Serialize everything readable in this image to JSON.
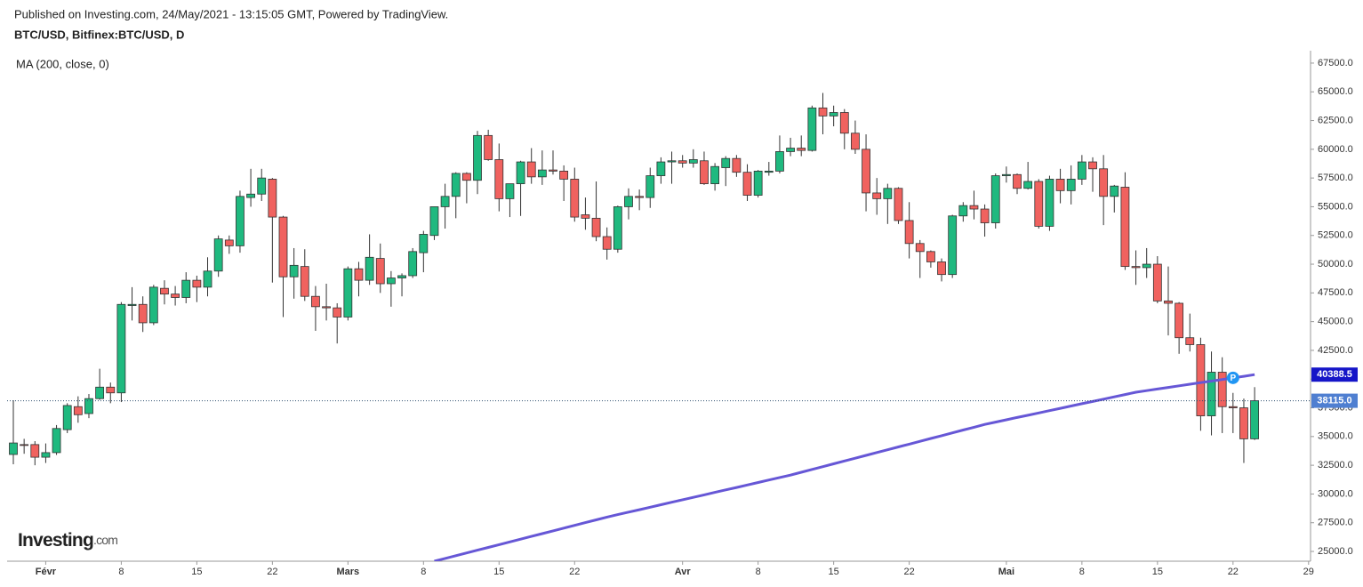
{
  "chart_data": {
    "type": "candlestick",
    "published": "Published on Investing.com, 24/May/2021 - 13:15:05 GMT, Powered by TradingView.",
    "title": "BTC/USD, Bitfinex:BTC/USD, D",
    "indicator_label": "MA (200, close, 0)",
    "logo": {
      "main": "Investing",
      "suffix": ".com"
    },
    "categories": [
      "2021-01-29",
      "2021-01-30",
      "2021-01-31",
      "2021-02-01",
      "2021-02-02",
      "2021-02-03",
      "2021-02-04",
      "2021-02-05",
      "2021-02-06",
      "2021-02-07",
      "2021-02-08",
      "2021-02-09",
      "2021-02-10",
      "2021-02-11",
      "2021-02-12",
      "2021-02-13",
      "2021-02-14",
      "2021-02-15",
      "2021-02-16",
      "2021-02-17",
      "2021-02-18",
      "2021-02-19",
      "2021-02-20",
      "2021-02-21",
      "2021-02-22",
      "2021-02-23",
      "2021-02-24",
      "2021-02-25",
      "2021-02-26",
      "2021-02-27",
      "2021-02-28",
      "2021-03-01",
      "2021-03-02",
      "2021-03-03",
      "2021-03-04",
      "2021-03-05",
      "2021-03-06",
      "2021-03-07",
      "2021-03-08",
      "2021-03-09",
      "2021-03-10",
      "2021-03-11",
      "2021-03-12",
      "2021-03-13",
      "2021-03-14",
      "2021-03-15",
      "2021-03-16",
      "2021-03-17",
      "2021-03-18",
      "2021-03-19",
      "2021-03-20",
      "2021-03-21",
      "2021-03-22",
      "2021-03-23",
      "2021-03-24",
      "2021-03-25",
      "2021-03-26",
      "2021-03-27",
      "2021-03-28",
      "2021-03-29",
      "2021-03-30",
      "2021-03-31",
      "2021-04-01",
      "2021-04-02",
      "2021-04-03",
      "2021-04-04",
      "2021-04-05",
      "2021-04-06",
      "2021-04-07",
      "2021-04-08",
      "2021-04-09",
      "2021-04-10",
      "2021-04-11",
      "2021-04-12",
      "2021-04-13",
      "2021-04-14",
      "2021-04-15",
      "2021-04-16",
      "2021-04-17",
      "2021-04-18",
      "2021-04-19",
      "2021-04-20",
      "2021-04-21",
      "2021-04-22",
      "2021-04-23",
      "2021-04-24",
      "2021-04-25",
      "2021-04-26",
      "2021-04-27",
      "2021-04-28",
      "2021-04-29",
      "2021-04-30",
      "2021-05-01",
      "2021-05-02",
      "2021-05-03",
      "2021-05-04",
      "2021-05-05",
      "2021-05-06",
      "2021-05-07",
      "2021-05-08",
      "2021-05-09",
      "2021-05-10",
      "2021-05-11",
      "2021-05-12",
      "2021-05-13",
      "2021-05-14",
      "2021-05-15",
      "2021-05-16",
      "2021-05-17",
      "2021-05-18",
      "2021-05-19",
      "2021-05-20",
      "2021-05-21",
      "2021-05-22",
      "2021-05-23",
      "2021-05-24"
    ],
    "open": [
      33440,
      34300,
      34300,
      33200,
      33600,
      35600,
      37600,
      37000,
      38300,
      39300,
      38800,
      46400,
      46500,
      44900,
      47900,
      47400,
      47100,
      48600,
      48000,
      49400,
      52100,
      51600,
      55800,
      56100,
      57400,
      54100,
      48900,
      49800,
      47200,
      46300,
      46200,
      45400,
      49600,
      48600,
      50500,
      48300,
      48800,
      49000,
      51000,
      52500,
      55000,
      55900,
      57900,
      57300,
      61200,
      59100,
      55700,
      57000,
      58900,
      57600,
      58200,
      58100,
      57400,
      54300,
      54000,
      52400,
      51300,
      55000,
      55900,
      55800,
      57700,
      58900,
      59000,
      58800,
      59000,
      57000,
      58400,
      59200,
      58000,
      56000,
      58000,
      58100,
      59800,
      60100,
      59900,
      63600,
      62900,
      63200,
      61400,
      60000,
      56200,
      55700,
      56600,
      53800,
      51800,
      51100,
      50200,
      49100,
      54200,
      55100,
      54800,
      53600,
      57700,
      57800,
      56600,
      57200,
      53300,
      57400,
      56400,
      57400,
      58900,
      58300,
      55900,
      56700,
      49800,
      49700,
      50000,
      46800,
      46600,
      43600,
      43000,
      36800,
      40600,
      37600,
      37500,
      34800
    ],
    "high": [
      38160,
      34800,
      34600,
      34400,
      36000,
      37900,
      38500,
      38700,
      40900,
      39700,
      46700,
      48000,
      47200,
      48200,
      48600,
      48100,
      49300,
      49000,
      50600,
      52500,
      52500,
      56400,
      58300,
      58300,
      57500,
      54200,
      51400,
      51300,
      48100,
      48300,
      46600,
      49800,
      50200,
      52600,
      51800,
      49400,
      49200,
      51400,
      52900,
      55000,
      57000,
      58000,
      58000,
      61600,
      61700,
      60500,
      57000,
      59000,
      60100,
      59900,
      59900,
      58600,
      58400,
      55800,
      57200,
      53200,
      55100,
      56600,
      56500,
      58400,
      59300,
      59800,
      59500,
      60000,
      59800,
      58800,
      59400,
      59500,
      58700,
      58200,
      58900,
      61200,
      61000,
      61200,
      63800,
      64900,
      63800,
      63500,
      62500,
      61300,
      57500,
      57000,
      56700,
      55400,
      52100,
      51200,
      50500,
      54300,
      55400,
      56400,
      55200,
      57900,
      58500,
      57900,
      58900,
      57400,
      57700,
      58300,
      58600,
      59500,
      59300,
      59500,
      56900,
      58000,
      51200,
      51400,
      50700,
      49800,
      46700,
      45700,
      43600,
      42400,
      41900,
      38800,
      38300,
      39300
    ],
    "low": [
      32590,
      33500,
      32500,
      32700,
      33400,
      35300,
      36200,
      36600,
      38200,
      37900,
      38000,
      45100,
      44100,
      44700,
      46500,
      46400,
      46600,
      46700,
      47200,
      48900,
      50900,
      51000,
      55000,
      55500,
      48400,
      45400,
      47000,
      46800,
      44200,
      45100,
      43100,
      45100,
      47200,
      48200,
      47500,
      46300,
      47200,
      48800,
      49300,
      52100,
      53100,
      54000,
      55300,
      56100,
      59000,
      54600,
      54100,
      54200,
      57000,
      56900,
      57800,
      55500,
      53700,
      53000,
      52000,
      50400,
      51000,
      53900,
      54700,
      54900,
      57000,
      57000,
      58400,
      58400,
      56900,
      56400,
      56800,
      57600,
      55500,
      55800,
      57700,
      57900,
      59400,
      59400,
      59800,
      61300,
      62000,
      60000,
      59600,
      54600,
      54300,
      53500,
      53500,
      50500,
      48800,
      49700,
      48500,
      48800,
      53700,
      53900,
      52400,
      53100,
      57100,
      56100,
      56500,
      53100,
      52900,
      55300,
      55200,
      56900,
      56300,
      53400,
      54500,
      49500,
      48200,
      48800,
      46600,
      43800,
      42200,
      42400,
      35500,
      35100,
      35300,
      35300,
      32700,
      34700
    ],
    "close": [
      34440,
      34250,
      33200,
      33600,
      35700,
      37700,
      36900,
      38300,
      39300,
      38800,
      46500,
      46500,
      44900,
      48000,
      47400,
      47100,
      48600,
      48000,
      49400,
      52200,
      51600,
      55900,
      56100,
      57500,
      54100,
      48900,
      49900,
      47200,
      46300,
      46200,
      45400,
      49600,
      48600,
      50600,
      48300,
      48800,
      49000,
      51100,
      52600,
      55000,
      55900,
      57900,
      57300,
      61200,
      59100,
      55700,
      57000,
      58900,
      57600,
      58200,
      58100,
      57400,
      54100,
      54000,
      52400,
      51300,
      55000,
      55900,
      55800,
      57700,
      58900,
      59000,
      58800,
      59100,
      57000,
      58500,
      59200,
      58000,
      56000,
      58100,
      58100,
      59800,
      60100,
      59900,
      63600,
      62900,
      63200,
      61400,
      60000,
      56200,
      55700,
      56600,
      53800,
      51800,
      51100,
      50200,
      49100,
      54200,
      55100,
      54800,
      53600,
      57700,
      57800,
      56600,
      57200,
      53300,
      57400,
      56400,
      57400,
      58900,
      58300,
      55900,
      56800,
      49800,
      49700,
      50000,
      46800,
      46600,
      43600,
      43000,
      36800,
      40600,
      37600,
      37500,
      34800,
      38115
    ],
    "up_color": "#1fb97f",
    "down_color": "#f0625f",
    "series": [
      {
        "name": "MA (200, close, 0)",
        "color": "#6657d6",
        "values": [
          null,
          null,
          null,
          null,
          null,
          null,
          null,
          null,
          null,
          null,
          null,
          null,
          null,
          null,
          null,
          null,
          null,
          null,
          null,
          null,
          null,
          null,
          null,
          null,
          null,
          null,
          null,
          null,
          null,
          null,
          null,
          null,
          null,
          null,
          null,
          null,
          null,
          null,
          null,
          24150,
          24390,
          24630,
          24870,
          25110,
          25350,
          25590,
          25830,
          26070,
          26310,
          26550,
          26790,
          27030,
          27270,
          27510,
          27750,
          27990,
          28205,
          28420,
          28635,
          28850,
          29065,
          29280,
          29495,
          29710,
          29925,
          30140,
          30355,
          30570,
          30785,
          31000,
          31215,
          31430,
          31645,
          31890,
          32135,
          32380,
          32625,
          32870,
          33115,
          33360,
          33605,
          33850,
          34095,
          34340,
          34585,
          34830,
          35075,
          35320,
          35565,
          35810,
          36055,
          36255,
          36455,
          36655,
          36855,
          37055,
          37255,
          37455,
          37655,
          37855,
          38055,
          38255,
          38455,
          38655,
          38855,
          38994,
          39133,
          39272,
          39411,
          39550,
          39689,
          39828,
          39967,
          40106,
          40245,
          40388.5
        ]
      }
    ],
    "current_price": {
      "value": 38115,
      "label": "38115.0"
    },
    "marker": {
      "label": "P",
      "date": "2021-05-22"
    },
    "ylim": [
      24150,
      68580
    ],
    "yticks": [
      {
        "value": 25000,
        "label": "25000.0"
      },
      {
        "value": 27500,
        "label": "27500.0"
      },
      {
        "value": 30000,
        "label": "30000.0"
      },
      {
        "value": 32500,
        "label": "32500.0"
      },
      {
        "value": 35000,
        "label": "35000.0"
      },
      {
        "value": 37500,
        "label": "37500.0"
      },
      {
        "value": 40000,
        "label": "40000.0"
      },
      {
        "value": 42500,
        "label": "42500.0"
      },
      {
        "value": 45000,
        "label": "45000.0"
      },
      {
        "value": 47500,
        "label": "47500.0"
      },
      {
        "value": 50000,
        "label": "50000.0"
      },
      {
        "value": 52500,
        "label": "52500.0"
      },
      {
        "value": 55000,
        "label": "55000.0"
      },
      {
        "value": 57500,
        "label": "57500.0"
      },
      {
        "value": 60000,
        "label": "60000.0"
      },
      {
        "value": 62500,
        "label": "62500.0"
      },
      {
        "value": 65000,
        "label": "65000.0"
      },
      {
        "value": 67500,
        "label": "67500.0"
      }
    ],
    "xticks": [
      {
        "value": "2021-02-01",
        "label": "Févr"
      },
      {
        "value": "2021-02-08",
        "label": "8"
      },
      {
        "value": "2021-02-15",
        "label": "15"
      },
      {
        "value": "2021-02-22",
        "label": "22"
      },
      {
        "value": "2021-03-01",
        "label": "Mars"
      },
      {
        "value": "2021-03-08",
        "label": "8"
      },
      {
        "value": "2021-03-15",
        "label": "15"
      },
      {
        "value": "2021-03-22",
        "label": "22"
      },
      {
        "value": "2021-04-01",
        "label": "Avr"
      },
      {
        "value": "2021-04-08",
        "label": "8"
      },
      {
        "value": "2021-04-15",
        "label": "15"
      },
      {
        "value": "2021-04-22",
        "label": "22"
      },
      {
        "value": "2021-05-01",
        "label": "Mai"
      },
      {
        "value": "2021-05-08",
        "label": "8"
      },
      {
        "value": "2021-05-15",
        "label": "15"
      },
      {
        "value": "2021-05-22",
        "label": "22"
      },
      {
        "value": "2021-05-29",
        "label": "29"
      }
    ],
    "grid": false
  }
}
